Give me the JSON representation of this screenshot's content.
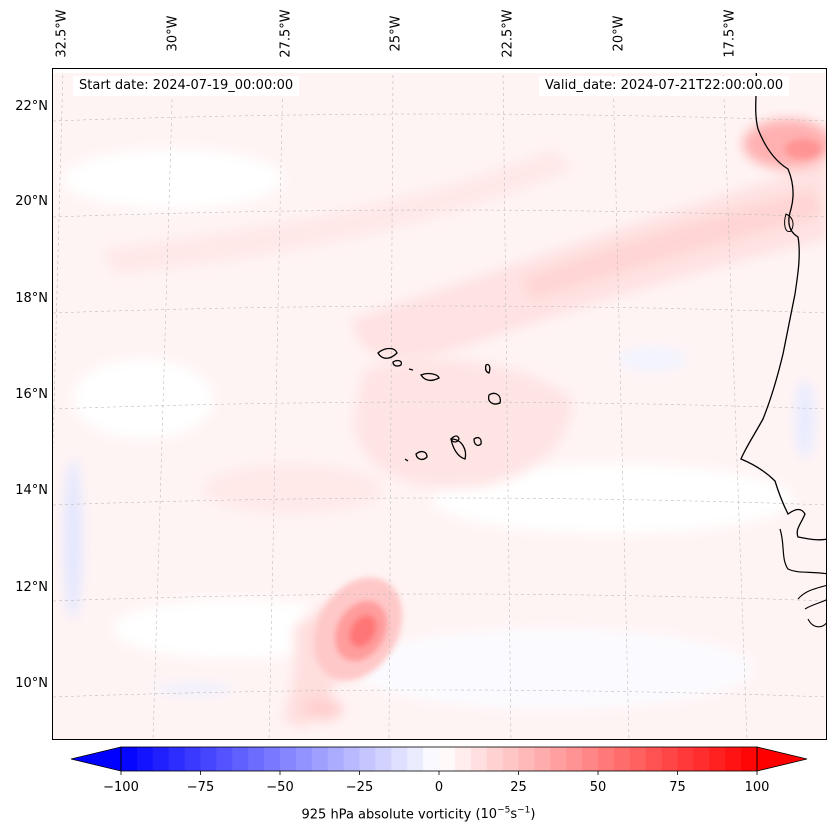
{
  "map": {
    "title_left": "Start date: 2024-07-19_00:00:00",
    "title_right": "Valid_date: 2024-07-21T22:00:00.00",
    "longitude_labels": [
      "32.5°W",
      "30°W",
      "27.5°W",
      "25°W",
      "22.5°W",
      "20°W",
      "17.5°W"
    ],
    "latitude_labels": [
      "22°N",
      "20°N",
      "18°N",
      "16°N",
      "14°N",
      "12°N",
      "10°N"
    ],
    "variable": "925 hPa absolute vorticity",
    "units_prefix": "(10",
    "units_exp1": "−5",
    "units_mid": "s",
    "units_exp2": "−1",
    "units_suffix": ")"
  },
  "chart_data": {
    "type": "heatmap",
    "title": "925 hPa absolute vorticity",
    "colormap": "bwr",
    "colorbar": {
      "min": -100,
      "max": 100,
      "ticks": [
        -100,
        -75,
        -50,
        -25,
        0,
        25,
        50,
        75,
        100
      ],
      "tick_labels": [
        "−100",
        "−75",
        "−50",
        "−25",
        "0",
        "25",
        "50",
        "75",
        "100"
      ],
      "extend": "both"
    },
    "features": [
      {
        "name": "vortex",
        "lon": -25.2,
        "lat": 11.1,
        "value": 45
      },
      {
        "name": "coastal maximum",
        "lon": -16.2,
        "lat": 21.7,
        "value": 35
      },
      {
        "name": "vorticity band",
        "lon": -20.5,
        "lat": 18.3,
        "value": 12
      },
      {
        "name": "cape verde region",
        "lon": -25.0,
        "lat": 17.0,
        "value": 8
      }
    ],
    "domain": {
      "lon_range": [
        -33,
        -15.5
      ],
      "lat_range": [
        9,
        22.8
      ]
    }
  }
}
